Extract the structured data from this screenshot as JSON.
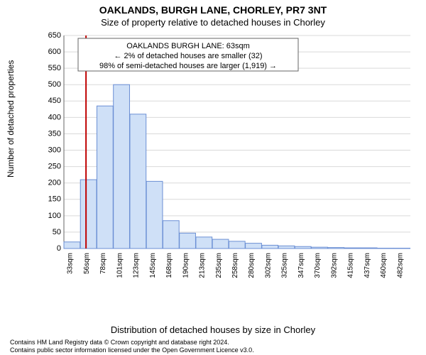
{
  "title": "OAKLANDS, BURGH LANE, CHORLEY, PR7 3NT",
  "subtitle": "Size of property relative to detached houses in Chorley",
  "ylabel": "Number of detached properties",
  "xlabel": "Distribution of detached houses by size in Chorley",
  "footnote_line1": "Contains HM Land Registry data © Crown copyright and database right 2024.",
  "footnote_line2": "Contains public sector information licensed under the Open Government Licence v3.0.",
  "chart": {
    "type": "histogram",
    "background_color": "#ffffff",
    "grid_color": "#d9d9d9",
    "axis_color": "#666666",
    "bar_color": "#cfe0f7",
    "bar_border_color": "#6b8fd4",
    "marker_color": "#c00000",
    "ylim": [
      0,
      650
    ],
    "ytick_step": 50,
    "xtick_labels": [
      "33sqm",
      "56sqm",
      "78sqm",
      "101sqm",
      "123sqm",
      "145sqm",
      "168sqm",
      "190sqm",
      "213sqm",
      "235sqm",
      "258sqm",
      "280sqm",
      "302sqm",
      "325sqm",
      "347sqm",
      "370sqm",
      "392sqm",
      "415sqm",
      "437sqm",
      "460sqm",
      "482sqm"
    ],
    "values": [
      20,
      210,
      435,
      500,
      410,
      205,
      85,
      47,
      35,
      28,
      22,
      16,
      10,
      8,
      6,
      4,
      3,
      2,
      2,
      1,
      1
    ],
    "marker_position": 1.34,
    "annotation": {
      "line1": "OAKLANDS BURGH LANE: 63sqm",
      "line2": "← 2% of detached houses are smaller (32)",
      "line3": "98% of semi-detached houses are larger (1,919) →"
    }
  }
}
